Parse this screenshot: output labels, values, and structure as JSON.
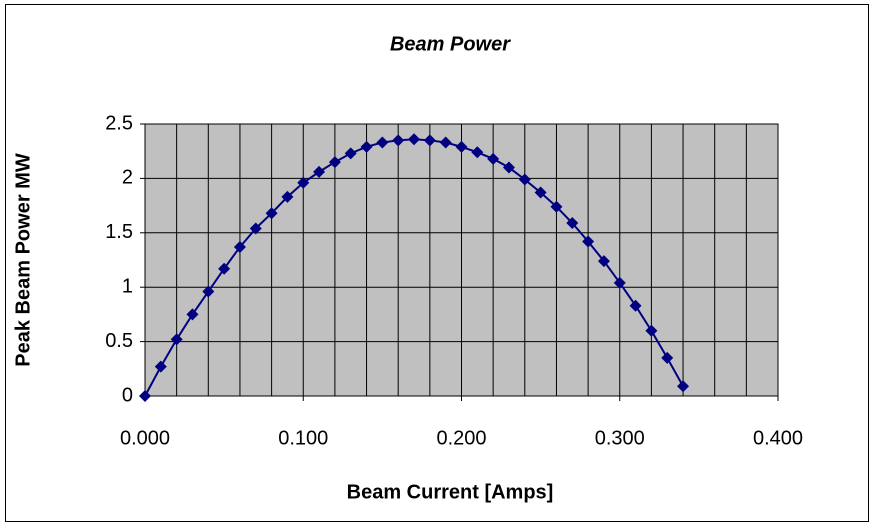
{
  "chart_data": {
    "type": "scatter",
    "title": "Beam Power",
    "xlabel": "Beam Current [Amps]",
    "ylabel": "Peak Beam Power MW",
    "series": [
      {
        "name": "Beam Power",
        "color": "#000080",
        "x": [
          0,
          0.01,
          0.02,
          0.03,
          0.04,
          0.05,
          0.06,
          0.07,
          0.08,
          0.09,
          0.1,
          0.11,
          0.12,
          0.13,
          0.14,
          0.15,
          0.16,
          0.17,
          0.18,
          0.19,
          0.2,
          0.21,
          0.22,
          0.23,
          0.24,
          0.25,
          0.26,
          0.27,
          0.28,
          0.29,
          0.3,
          0.31,
          0.32,
          0.33,
          0.34
        ],
        "values": [
          0,
          0.27,
          0.52,
          0.75,
          0.96,
          1.17,
          1.37,
          1.54,
          1.68,
          1.83,
          1.96,
          2.06,
          2.15,
          2.23,
          2.29,
          2.33,
          2.35,
          2.36,
          2.35,
          2.33,
          2.29,
          2.24,
          2.18,
          2.1,
          1.99,
          1.87,
          1.74,
          1.59,
          1.42,
          1.24,
          1.04,
          0.83,
          0.6,
          0.35,
          0.09
        ]
      }
    ],
    "xlim": [
      0,
      0.4
    ],
    "xticks": [
      {
        "value": 0,
        "label": "0.000"
      },
      {
        "value": 0.1,
        "label": "0.100"
      },
      {
        "value": 0.2,
        "label": "0.200"
      },
      {
        "value": 0.3,
        "label": "0.300"
      },
      {
        "value": 0.4,
        "label": "0.400"
      }
    ],
    "x_minor_grid_step": 0.02,
    "ylim": [
      0,
      2.5
    ],
    "yticks": [
      0,
      0.5,
      1,
      1.5,
      2,
      2.5
    ],
    "grid": true,
    "plot_background": "#c0c0c0"
  }
}
